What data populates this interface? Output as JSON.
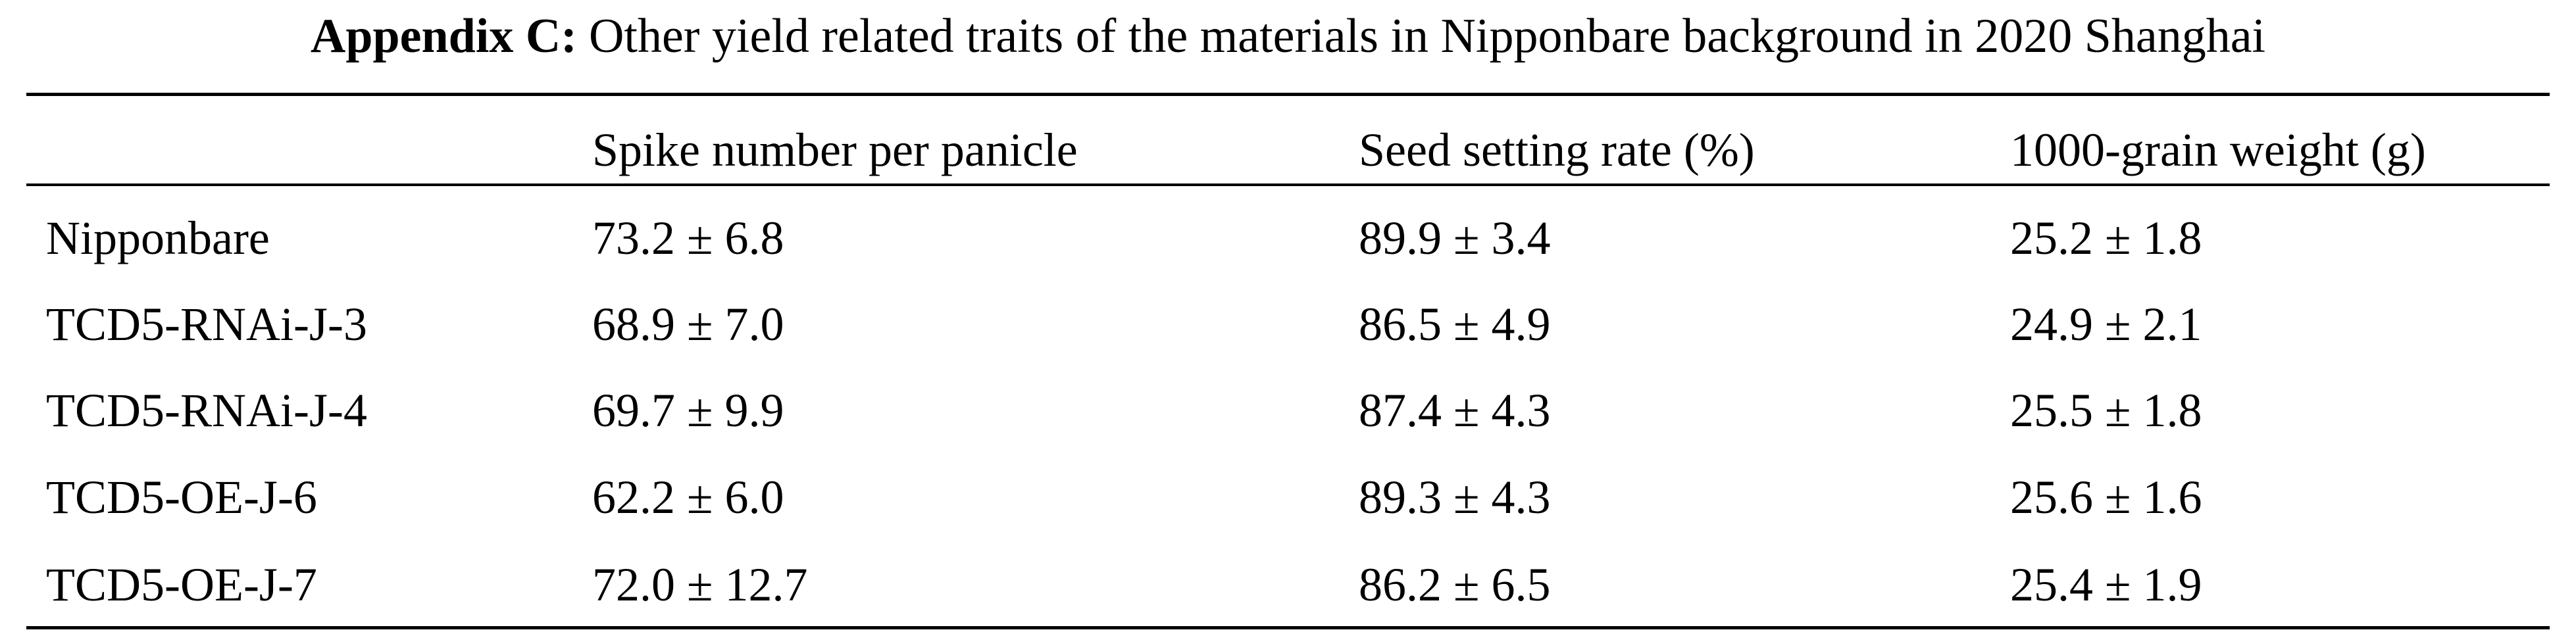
{
  "title": {
    "label": "Appendix C:",
    "text": "Other yield related traits of the materials in Nipponbare background in 2020 Shanghai"
  },
  "table": {
    "columns": [
      "Spike number per panicle",
      "Seed setting rate (%)",
      "1000-grain weight (g)"
    ],
    "rows": [
      [
        "Nipponbare",
        "73.2 ± 6.8",
        "89.9 ± 3.4",
        "25.2 ± 1.8"
      ],
      [
        "TCD5-RNAi-J-3",
        "68.9 ± 7.0",
        "86.5 ± 4.9",
        "24.9 ± 2.1"
      ],
      [
        "TCD5-RNAi-J-4",
        "69.7 ± 9.9",
        "87.4 ± 4.3",
        "25.5 ± 1.8"
      ],
      [
        "TCD5-OE-J-6",
        "62.2 ± 6.0",
        "89.3 ± 4.3",
        "25.6 ± 1.6"
      ],
      [
        "TCD5-OE-J-7",
        "72.0 ± 12.7",
        "86.2 ± 6.5",
        "25.4 ± 1.9"
      ]
    ]
  }
}
